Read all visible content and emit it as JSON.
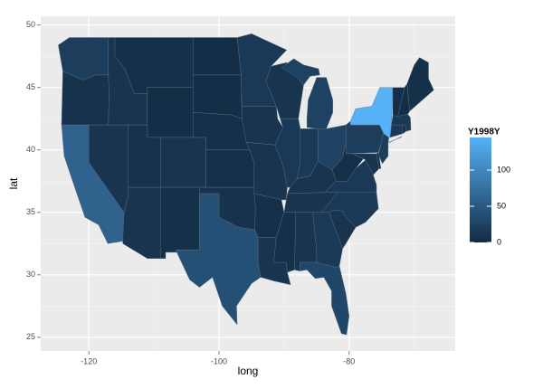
{
  "chart_data": {
    "type": "choropleth",
    "xlabel": "long",
    "ylabel": "lat",
    "xlim": [
      -127.4,
      -63.7
    ],
    "ylim": [
      23.9,
      50.7
    ],
    "xticks": [
      -120,
      -100,
      -80
    ],
    "yticks": [
      25,
      30,
      35,
      40,
      45,
      50
    ],
    "grid": true,
    "legend": {
      "title": "Y1998Y",
      "low": "#132B43",
      "high": "#56B1F7",
      "limits": [
        0,
        145
      ],
      "ticks": [
        0,
        50,
        100
      ]
    },
    "values": [
      20,
      8,
      60,
      10,
      10,
      5,
      3,
      8,
      10,
      10,
      5,
      3,
      3,
      5,
      5,
      8,
      40,
      15,
      10,
      10,
      5,
      10,
      10,
      15,
      25,
      15,
      25,
      10,
      10,
      5,
      10,
      15,
      30,
      10,
      15,
      15,
      5,
      10,
      3,
      20,
      20,
      145,
      15,
      5,
      15,
      3,
      3,
      5
    ]
  }
}
